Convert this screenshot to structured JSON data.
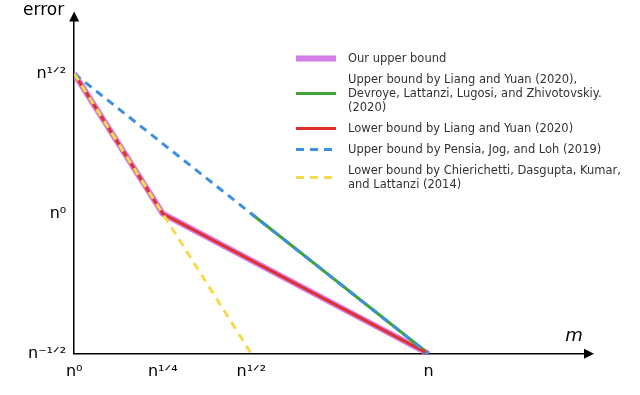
{
  "chart_data": {
    "type": "line",
    "x_label": "m",
    "y_label": "error",
    "xlim": [
      0,
      1.45
    ],
    "ylim": [
      -0.5,
      0.7
    ],
    "xticks": [
      {
        "value": 0,
        "label": "n⁰"
      },
      {
        "value": 0.25,
        "label": "n¹ᐟ⁴"
      },
      {
        "value": 0.5,
        "label": "n¹ᐟ²"
      },
      {
        "value": 1,
        "label": "n"
      }
    ],
    "yticks": [
      {
        "value": -0.5,
        "label": "n⁻¹ᐟ²"
      },
      {
        "value": 0,
        "label": "n⁰"
      },
      {
        "value": 0.5,
        "label": "n¹ᐟ²"
      }
    ],
    "grid": false,
    "legend": "upper right",
    "series": [
      {
        "name": "Our upper bound",
        "color": "#d27ee6",
        "line_style": "solid",
        "x": [
          0,
          0.25,
          1
        ],
        "values": [
          0.5,
          0,
          -0.5
        ]
      },
      {
        "name": "Upper bound by Liang and Yuan (2020), Devroye, Lattanzi, Lugosi, and Zhivotovskiy. (2020)",
        "color": "#3ea535",
        "line_style": "solid",
        "x": [
          0.5,
          1
        ],
        "values": [
          0,
          -0.5
        ]
      },
      {
        "name": "Lower bound by Liang and Yuan (2020)",
        "color": "#e0302a",
        "line_style": "solid",
        "x": [
          0,
          0.25,
          1
        ],
        "values": [
          0.5,
          0,
          -0.5
        ]
      },
      {
        "name": "Upper bound by Pensia, Jog, and Loh (2019)",
        "color": "#3d8fe0",
        "line_style": "dashed",
        "x": [
          0,
          1
        ],
        "values": [
          0.5,
          -0.5
        ]
      },
      {
        "name": "Lower bound by Chierichetti, Dasgupta, Kumar, and Lattanzi (2014)",
        "color": "#f5db4c",
        "line_style": "dashed",
        "x": [
          0,
          0.5
        ],
        "values": [
          0.5,
          -0.5
        ]
      }
    ]
  }
}
